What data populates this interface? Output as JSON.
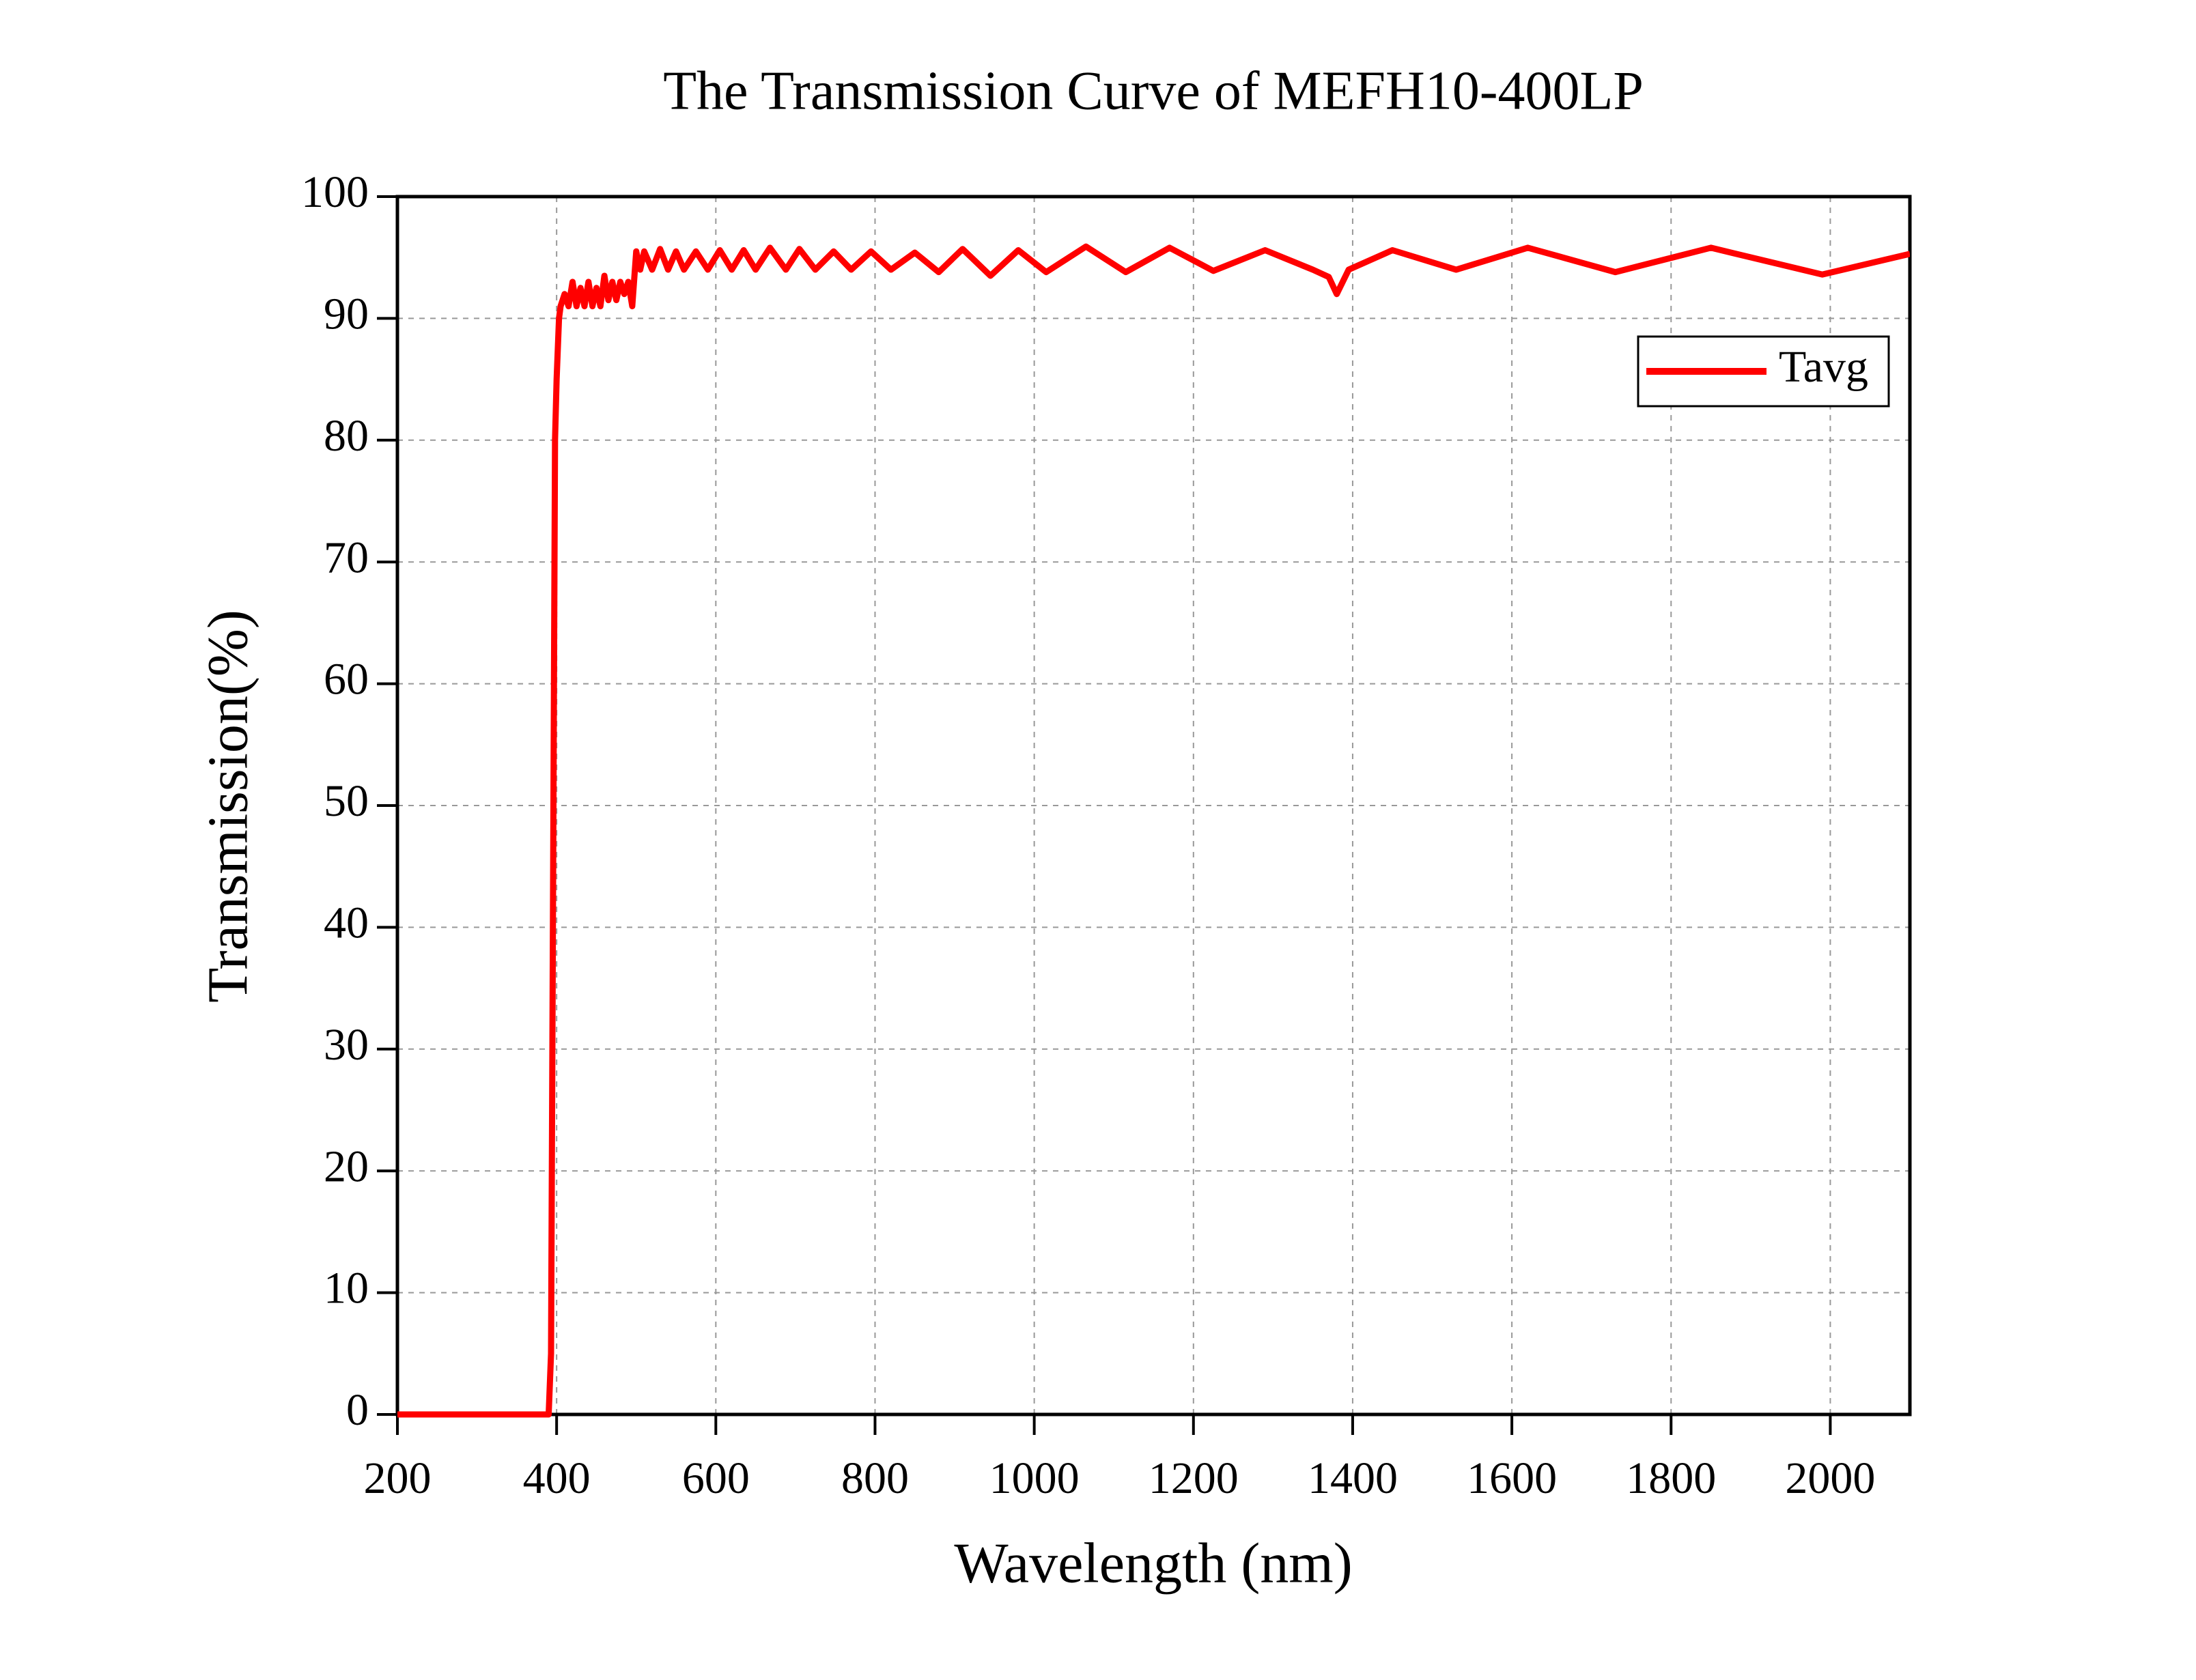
{
  "chart_data": {
    "type": "line",
    "title": "The Transmission Curve of MEFH10-400LP",
    "x_label": "Wavelength (nm)",
    "y_label": "Transmission(%)",
    "x": [
      200,
      390,
      393,
      396,
      398,
      400,
      403,
      405,
      410,
      415,
      420,
      425,
      430,
      435,
      440,
      445,
      450,
      455,
      460,
      465,
      470,
      475,
      480,
      485,
      490,
      495,
      500,
      505,
      510,
      520,
      530,
      540,
      550,
      560,
      575,
      590,
      605,
      620,
      635,
      650,
      668,
      688,
      705,
      725,
      748,
      770,
      795,
      820,
      850,
      880,
      910,
      945,
      980,
      1015,
      1065,
      1115,
      1170,
      1225,
      1290,
      1350,
      1370,
      1380,
      1395,
      1450,
      1530,
      1620,
      1730,
      1850,
      1990,
      2100
    ],
    "series": [
      {
        "name": "Tavg",
        "color": "#ff0000",
        "values": [
          0,
          0,
          5,
          50,
          80,
          85,
          90,
          91,
          92,
          91,
          93,
          91,
          92.5,
          91,
          93,
          91,
          92.5,
          91,
          93.5,
          91.5,
          93,
          91.5,
          93,
          92,
          93,
          91,
          95.5,
          94,
          95.5,
          94,
          95.7,
          94,
          95.5,
          94,
          95.5,
          94,
          95.6,
          94,
          95.6,
          94,
          95.8,
          94,
          95.7,
          94,
          95.5,
          94,
          95.5,
          94,
          95.4,
          93.8,
          95.7,
          93.5,
          95.6,
          93.8,
          95.9,
          93.8,
          95.8,
          93.9,
          95.6,
          94,
          93.4,
          92,
          94,
          95.6,
          94,
          95.8,
          93.8,
          95.8,
          93.6,
          95.3
        ]
      }
    ],
    "xlim": [
      200,
      2100
    ],
    "ylim": [
      0,
      100
    ],
    "xticks": [
      200,
      400,
      600,
      800,
      1000,
      1200,
      1400,
      1600,
      1800,
      2000
    ],
    "yticks": [
      0,
      10,
      20,
      30,
      40,
      50,
      60,
      70,
      80,
      90,
      100
    ],
    "grid": true,
    "legend": "upper right"
  }
}
